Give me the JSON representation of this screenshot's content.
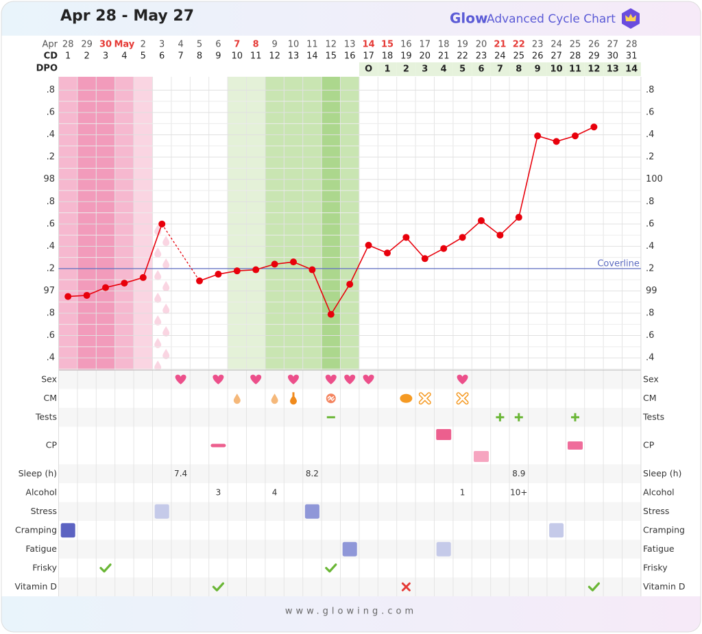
{
  "title": "Apr 28 - May 27",
  "brand": {
    "logo": "Glow",
    "name": "Advanced Cycle Chart"
  },
  "footer": "www.glowing.com",
  "chart_data": {
    "type": "line",
    "row_labels": {
      "date": "Apr",
      "cd": "CD",
      "dpo": "DPO"
    },
    "dates": [
      {
        "label": "28"
      },
      {
        "label": "29"
      },
      {
        "label": "30",
        "highlight": true
      },
      {
        "label": "May",
        "highlight": true
      },
      {
        "label": "2"
      },
      {
        "label": "3"
      },
      {
        "label": "4"
      },
      {
        "label": "5"
      },
      {
        "label": "6"
      },
      {
        "label": "7",
        "highlight": true
      },
      {
        "label": "8",
        "highlight": true
      },
      {
        "label": "9"
      },
      {
        "label": "10"
      },
      {
        "label": "11"
      },
      {
        "label": "12"
      },
      {
        "label": "13"
      },
      {
        "label": "14",
        "highlight": true
      },
      {
        "label": "15",
        "highlight": true
      },
      {
        "label": "16"
      },
      {
        "label": "17"
      },
      {
        "label": "18"
      },
      {
        "label": "19"
      },
      {
        "label": "20"
      },
      {
        "label": "21",
        "highlight": true
      },
      {
        "label": "22",
        "highlight": true
      },
      {
        "label": "23"
      },
      {
        "label": "24"
      },
      {
        "label": "25"
      },
      {
        "label": "26"
      },
      {
        "label": "27"
      },
      {
        "label": "28"
      }
    ],
    "highlight_color": "#e53935",
    "cd": [
      1,
      2,
      3,
      4,
      5,
      6,
      7,
      8,
      9,
      10,
      11,
      12,
      13,
      14,
      15,
      16,
      17,
      18,
      19,
      20,
      21,
      22,
      23,
      24,
      25,
      26,
      27,
      28,
      29,
      30,
      31
    ],
    "dpo": [
      null,
      null,
      null,
      null,
      null,
      null,
      null,
      null,
      null,
      null,
      null,
      null,
      null,
      null,
      null,
      null,
      "O",
      1,
      2,
      3,
      4,
      5,
      6,
      7,
      8,
      9,
      10,
      11,
      12,
      13,
      14
    ],
    "day_shading": [
      "period-light",
      "period-heavy",
      "period-heavy",
      "period-medium",
      "period-faint",
      "spotting",
      null,
      null,
      null,
      "fertile-light",
      "fertile-light",
      "fertile-medium",
      "fertile-medium",
      "fertile-medium",
      "fertile-peak",
      "fertile-medium",
      null,
      null,
      null,
      null,
      null,
      null,
      null,
      null,
      null,
      null,
      null,
      null,
      null,
      null,
      null
    ],
    "color": "#e8000b",
    "values": [
      96.95,
      96.96,
      97.03,
      97.07,
      97.12,
      97.6,
      null,
      97.09,
      97.15,
      97.18,
      97.19,
      97.24,
      97.26,
      97.19,
      96.79,
      97.06,
      97.41,
      97.34,
      97.48,
      97.29,
      97.38,
      97.48,
      97.63,
      97.5,
      97.66,
      98.39,
      98.34,
      98.39,
      98.47,
      null,
      null
    ],
    "ylim": [
      96.29,
      98.92
    ],
    "yticks": [
      {
        "value": 98.8,
        "label": ".8"
      },
      {
        "value": 98.6,
        "label": ".6"
      },
      {
        "value": 98.4,
        "label": ".4"
      },
      {
        "value": 98.2,
        "label": ".2"
      },
      98,
      {
        "value": 97.8,
        "label": ".8"
      },
      {
        "value": 97.6,
        "label": ".6"
      },
      {
        "value": 97.4,
        "label": ".4"
      },
      {
        "value": 97.2,
        "label": ".2"
      },
      97,
      {
        "value": 96.8,
        "label": ".8"
      },
      {
        "value": 96.6,
        "label": ".6"
      },
      {
        "value": 96.4,
        "label": ".4"
      }
    ],
    "y2lim": [
      98.29,
      100.92
    ],
    "y2ticks": [
      {
        "value": 100.8,
        "label": ".8"
      },
      {
        "value": 100.6,
        "label": ".6"
      },
      {
        "value": 100.4,
        "label": ".4"
      },
      {
        "value": 100.2,
        "label": ".2"
      },
      100,
      {
        "value": 99.8,
        "label": ".8"
      },
      {
        "value": 99.6,
        "label": ".6"
      },
      {
        "value": 99.4,
        "label": ".4"
      },
      {
        "value": 99.2,
        "label": ".2"
      },
      99,
      {
        "value": 98.8,
        "label": ".8"
      },
      {
        "value": 98.6,
        "label": ".6"
      },
      {
        "value": 98.4,
        "label": ".4"
      }
    ],
    "coverline": {
      "label": "Coverline",
      "value": 97.2,
      "color": "#5c6bc0"
    },
    "grid": true
  },
  "logs": [
    {
      "label": "Sex",
      "entries": [
        {
          "day": 7,
          "kind": "heart"
        },
        {
          "day": 9,
          "kind": "heart"
        },
        {
          "day": 11,
          "kind": "heart"
        },
        {
          "day": 13,
          "kind": "heart"
        },
        {
          "day": 15,
          "kind": "heart"
        },
        {
          "day": 16,
          "kind": "heart"
        },
        {
          "day": 17,
          "kind": "heart"
        },
        {
          "day": 22,
          "kind": "heart"
        }
      ]
    },
    {
      "label": "CM",
      "entries": [
        {
          "day": 10,
          "kind": "drop"
        },
        {
          "day": 12,
          "kind": "drop"
        },
        {
          "day": 13,
          "kind": "bottle"
        },
        {
          "day": 15,
          "kind": "egg"
        },
        {
          "day": 19,
          "kind": "oval"
        },
        {
          "day": 20,
          "kind": "cross-outline"
        },
        {
          "day": 22,
          "kind": "cross-outline"
        }
      ]
    },
    {
      "label": "Tests",
      "entries": [
        {
          "day": 15,
          "kind": "minus"
        },
        {
          "day": 24,
          "kind": "plus"
        },
        {
          "day": 25,
          "kind": "plus"
        },
        {
          "day": 28,
          "kind": "plus"
        }
      ]
    },
    {
      "label": "CP",
      "tall": true,
      "entries": [
        {
          "day": 9,
          "kind": "dash",
          "level": "medium"
        },
        {
          "day": 21,
          "kind": "pink-square",
          "level": "high"
        },
        {
          "day": 23,
          "kind": "pink-square",
          "level": "low"
        },
        {
          "day": 28,
          "kind": "pink-bar",
          "level": "medium"
        }
      ]
    },
    {
      "label": "Sleep (h)",
      "entries": [
        {
          "day": 7,
          "value": 7.4
        },
        {
          "day": 14,
          "value": 8.2
        },
        {
          "day": 25,
          "value": 8.9
        }
      ]
    },
    {
      "label": "Alcohol",
      "entries": [
        {
          "day": 9,
          "value": 3
        },
        {
          "day": 12,
          "value": 4
        },
        {
          "day": 22,
          "value": 1
        },
        {
          "day": 25,
          "value": "10+"
        }
      ]
    },
    {
      "label": "Stress",
      "entries": [
        {
          "day": 6,
          "kind": "square",
          "level": 1
        },
        {
          "day": 14,
          "kind": "square",
          "level": 2
        }
      ]
    },
    {
      "label": "Cramping",
      "entries": [
        {
          "day": 1,
          "kind": "square",
          "level": 3
        },
        {
          "day": 27,
          "kind": "square",
          "level": 1
        }
      ]
    },
    {
      "label": "Fatigue",
      "entries": [
        {
          "day": 16,
          "kind": "square",
          "level": 2
        },
        {
          "day": 21,
          "kind": "square",
          "level": 1
        }
      ]
    },
    {
      "label": "Frisky",
      "entries": [
        {
          "day": 3,
          "kind": "check"
        },
        {
          "day": 15,
          "kind": "check"
        }
      ]
    },
    {
      "label": "Vitamin D",
      "entries": [
        {
          "day": 9,
          "kind": "check"
        },
        {
          "day": 19,
          "kind": "x"
        },
        {
          "day": 29,
          "kind": "check"
        }
      ]
    }
  ]
}
